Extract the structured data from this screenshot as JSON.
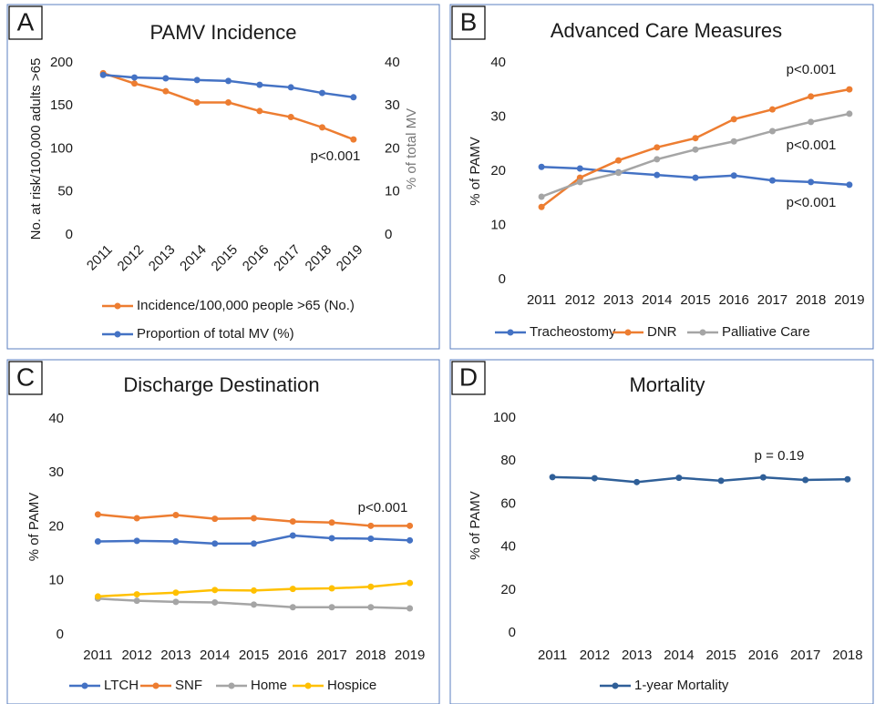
{
  "chart_data": [
    {
      "type": "line",
      "label": "A",
      "title": "PAMV Incidence",
      "ylabel": "No. at risk/100,000 adults >65",
      "y2label": "% of total MV",
      "categories": [
        "2011",
        "2012",
        "2013",
        "2014",
        "2015",
        "2016",
        "2017",
        "2018",
        "2019"
      ],
      "series": [
        {
          "name": "Incidence/100,000 people >65 (No.)",
          "color": "#ed7d31",
          "values": [
            188,
            176,
            167,
            154,
            154,
            144,
            137,
            125,
            111
          ]
        },
        {
          "name": "Proportion of total MV (%)",
          "color": "#4472c4",
          "axis": "y2",
          "values": [
            37.2,
            36.6,
            36.4,
            36.0,
            35.8,
            34.9,
            34.3,
            33.0,
            32.0
          ]
        }
      ],
      "ylim": [
        0,
        200
      ],
      "yticks": [
        0,
        50,
        100,
        150,
        200
      ],
      "y2lim": [
        0,
        40
      ],
      "y2ticks": [
        0,
        10,
        20,
        30,
        40
      ],
      "annotations": [
        "p<0.001"
      ]
    },
    {
      "type": "line",
      "label": "B",
      "title": "Advanced Care Measures",
      "ylabel": "% of PAMV",
      "categories": [
        "2011",
        "2012",
        "2013",
        "2014",
        "2015",
        "2016",
        "2017",
        "2018",
        "2019"
      ],
      "series": [
        {
          "name": "Tracheostomy",
          "color": "#4472c4",
          "values": [
            20.8,
            20.5,
            19.8,
            19.3,
            18.8,
            19.2,
            18.3,
            18.0,
            17.5
          ]
        },
        {
          "name": "DNR",
          "color": "#ed7d31",
          "values": [
            13.4,
            18.8,
            22.0,
            24.4,
            26.1,
            29.6,
            31.4,
            33.8,
            35.1
          ]
        },
        {
          "name": "Palliative Care",
          "color": "#a5a5a5",
          "values": [
            15.3,
            18.0,
            19.7,
            22.2,
            24.0,
            25.5,
            27.4,
            29.1,
            30.6
          ]
        }
      ],
      "ylim": [
        0,
        40
      ],
      "yticks": [
        0,
        10,
        20,
        30,
        40
      ],
      "annotations": [
        "p<0.001",
        "p<0.001",
        "p<0.001"
      ]
    },
    {
      "type": "line",
      "label": "C",
      "title": "Discharge Destination",
      "ylabel": "% of PAMV",
      "categories": [
        "2011",
        "2012",
        "2013",
        "2014",
        "2015",
        "2016",
        "2017",
        "2018",
        "2019"
      ],
      "series": [
        {
          "name": "LTCH",
          "color": "#4472c4",
          "values": [
            17.3,
            17.4,
            17.3,
            16.9,
            16.9,
            18.4,
            17.9,
            17.8,
            17.5
          ]
        },
        {
          "name": "SNF",
          "color": "#ed7d31",
          "values": [
            22.3,
            21.6,
            22.2,
            21.5,
            21.6,
            21.0,
            20.8,
            20.2,
            20.2
          ]
        },
        {
          "name": "Home",
          "color": "#a5a5a5",
          "values": [
            6.7,
            6.3,
            6.1,
            6.0,
            5.6,
            5.1,
            5.1,
            5.1,
            4.9
          ]
        },
        {
          "name": "Hospice",
          "color": "#ffc000",
          "values": [
            7.1,
            7.5,
            7.8,
            8.3,
            8.2,
            8.5,
            8.6,
            8.9,
            9.6
          ]
        }
      ],
      "ylim": [
        0,
        40
      ],
      "yticks": [
        0,
        10,
        20,
        30,
        40
      ],
      "annotations": [
        "p<0.001"
      ]
    },
    {
      "type": "line",
      "label": "D",
      "title": "Mortality",
      "ylabel": "% of PAMV",
      "categories": [
        "2011",
        "2012",
        "2013",
        "2014",
        "2015",
        "2016",
        "2017",
        "2018"
      ],
      "series": [
        {
          "name": "1-year Mortality",
          "color": "#2f5f98",
          "values": [
            72.5,
            72.0,
            70.2,
            72.2,
            70.8,
            72.4,
            71.2,
            71.5
          ]
        }
      ],
      "ylim": [
        0,
        100
      ],
      "yticks": [
        0,
        20,
        40,
        60,
        80,
        100
      ],
      "annotations": [
        "p = 0.19"
      ]
    }
  ]
}
